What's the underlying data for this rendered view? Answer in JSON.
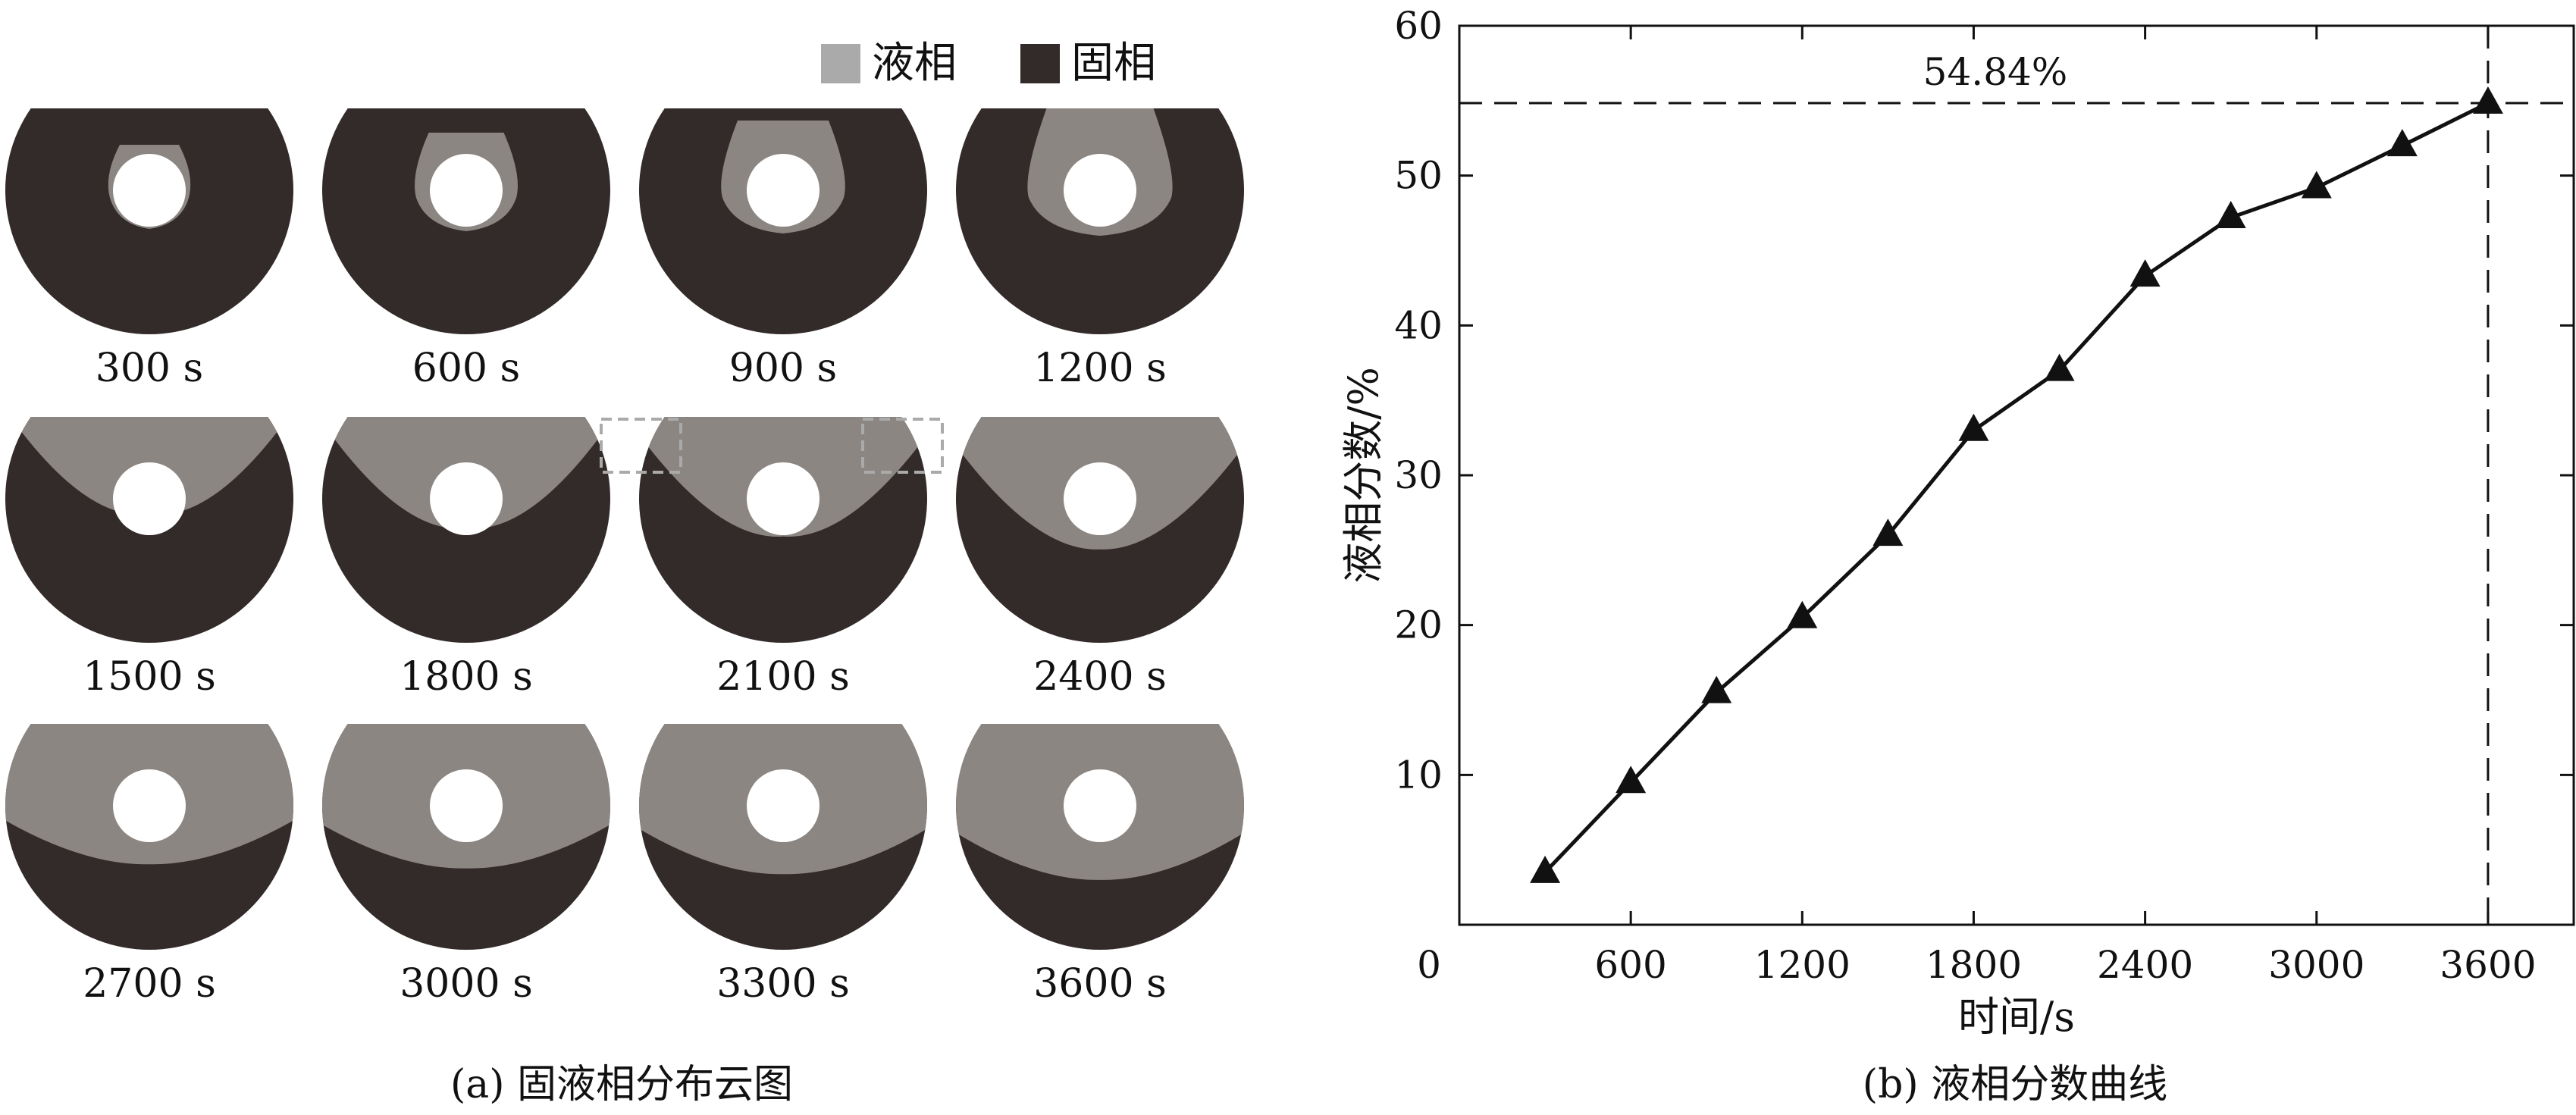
{
  "legend": {
    "items": [
      {
        "label": "液相",
        "color": "#aaaaaa"
      },
      {
        "label": "固相",
        "color": "#332b2a"
      }
    ]
  },
  "colors": {
    "liquid": "#8c8683",
    "solid": "#332b2a",
    "hole": "#ffffff",
    "box": "#aaaaaa",
    "line": "#111111"
  },
  "panel_a": {
    "caption": "(a) 固液相分布云图",
    "frames": [
      {
        "time": "300 s",
        "liquid_fraction": 3.5
      },
      {
        "time": "600 s",
        "liquid_fraction": 9.5
      },
      {
        "time": "900 s",
        "liquid_fraction": 15.5
      },
      {
        "time": "1200 s",
        "liquid_fraction": 20.5
      },
      {
        "time": "1500 s",
        "liquid_fraction": 26
      },
      {
        "time": "1800 s",
        "liquid_fraction": 33
      },
      {
        "time": "2100 s",
        "liquid_fraction": 37
      },
      {
        "time": "2400 s",
        "liquid_fraction": 43.3
      },
      {
        "time": "2700 s",
        "liquid_fraction": 47.2
      },
      {
        "time": "3000 s",
        "liquid_fraction": 49.2
      },
      {
        "time": "3300 s",
        "liquid_fraction": 52
      },
      {
        "time": "3600 s",
        "liquid_fraction": 54.84
      }
    ]
  },
  "panel_b": {
    "caption": "(b) 液相分数曲线"
  },
  "chart_data": {
    "type": "line",
    "title": "",
    "xlabel": "时间/s",
    "ylabel": "液相分数/%",
    "xlim": [
      0,
      3900
    ],
    "ylim": [
      0,
      60
    ],
    "xticks": [
      0,
      600,
      1200,
      1800,
      2400,
      3000,
      3600
    ],
    "xtick_labels": [
      "0",
      "600",
      "1200",
      "1800",
      "2400",
      "3000",
      "3600"
    ],
    "yticks": [
      10,
      20,
      30,
      40,
      50,
      60
    ],
    "ytick_labels": [
      "10",
      "20",
      "30",
      "40",
      "50",
      "60"
    ],
    "grid": false,
    "marker": "triangle",
    "series": [
      {
        "x": [
          300,
          600,
          900,
          1200,
          1500,
          1800,
          2100,
          2400,
          2700,
          3000,
          3300,
          3600
        ],
        "y": [
          3.5,
          9.5,
          15.5,
          20.5,
          26,
          33,
          37,
          43.3,
          47.2,
          49.2,
          52,
          54.84
        ]
      }
    ],
    "reference_lines": {
      "x": 3600,
      "y": 54.84
    },
    "annotation": "54.84%"
  }
}
